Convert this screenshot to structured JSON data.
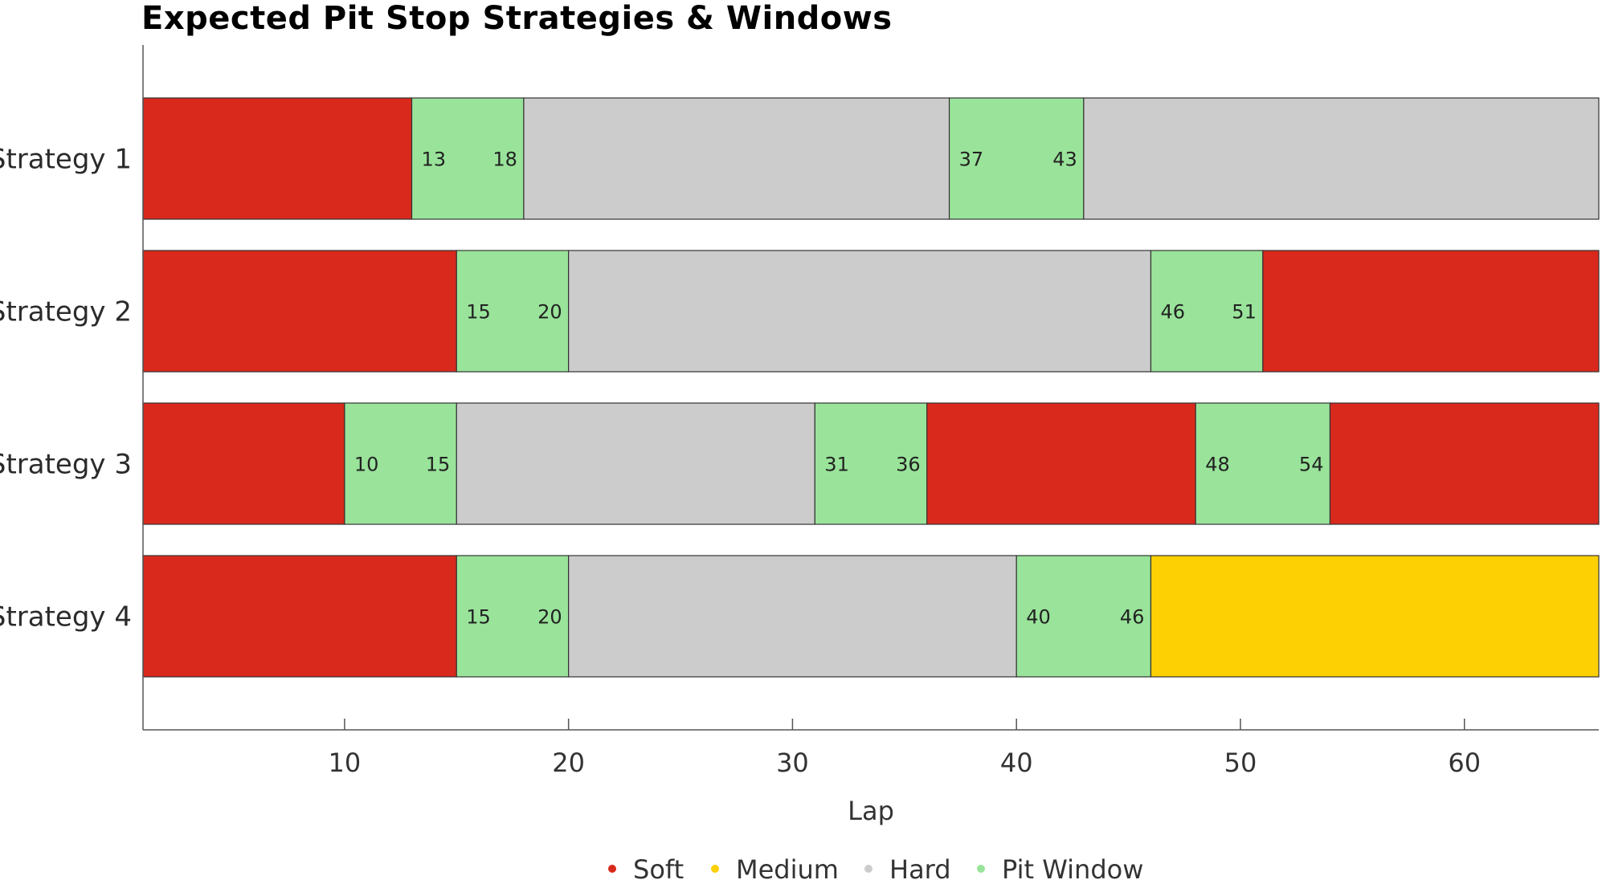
{
  "chart_data": {
    "type": "bar",
    "orientation": "horizontal-stacked",
    "title": "Expected Pit Stop Strategies & Windows",
    "xlabel": "Lap",
    "ylabel": "",
    "xlim": [
      1,
      66
    ],
    "xticks": [
      10,
      20,
      30,
      40,
      50,
      60
    ],
    "grid": false,
    "legend_position": "bottom-center",
    "compounds": [
      {
        "key": "soft",
        "name": "Soft",
        "color": "#d9291c"
      },
      {
        "key": "medium",
        "name": "Medium",
        "color": "#fdd003"
      },
      {
        "key": "hard",
        "name": "Hard",
        "color": "#cccccc"
      },
      {
        "key": "pit",
        "name": "Pit Window",
        "color": "#99e49a"
      }
    ],
    "categories": [
      "Strategy 1",
      "Strategy 2",
      "Strategy 3",
      "Strategy 4"
    ],
    "strategies": [
      {
        "name": "Strategy 1",
        "segments": [
          {
            "compound": "soft",
            "start": 1,
            "end": 13
          },
          {
            "compound": "pit",
            "start": 13,
            "end": 18
          },
          {
            "compound": "hard",
            "start": 18,
            "end": 37
          },
          {
            "compound": "pit",
            "start": 37,
            "end": 43
          },
          {
            "compound": "hard",
            "start": 43,
            "end": 66
          }
        ]
      },
      {
        "name": "Strategy 2",
        "segments": [
          {
            "compound": "soft",
            "start": 1,
            "end": 15
          },
          {
            "compound": "pit",
            "start": 15,
            "end": 20
          },
          {
            "compound": "hard",
            "start": 20,
            "end": 46
          },
          {
            "compound": "pit",
            "start": 46,
            "end": 51
          },
          {
            "compound": "soft",
            "start": 51,
            "end": 66
          }
        ]
      },
      {
        "name": "Strategy 3",
        "segments": [
          {
            "compound": "soft",
            "start": 1,
            "end": 10
          },
          {
            "compound": "pit",
            "start": 10,
            "end": 15
          },
          {
            "compound": "hard",
            "start": 15,
            "end": 31
          },
          {
            "compound": "pit",
            "start": 31,
            "end": 36
          },
          {
            "compound": "soft",
            "start": 36,
            "end": 48
          },
          {
            "compound": "pit",
            "start": 48,
            "end": 54
          },
          {
            "compound": "soft",
            "start": 54,
            "end": 66
          }
        ]
      },
      {
        "name": "Strategy 4",
        "segments": [
          {
            "compound": "soft",
            "start": 1,
            "end": 15
          },
          {
            "compound": "pit",
            "start": 15,
            "end": 20
          },
          {
            "compound": "hard",
            "start": 20,
            "end": 40
          },
          {
            "compound": "pit",
            "start": 40,
            "end": 46
          },
          {
            "compound": "medium",
            "start": 46,
            "end": 66
          }
        ]
      }
    ]
  }
}
